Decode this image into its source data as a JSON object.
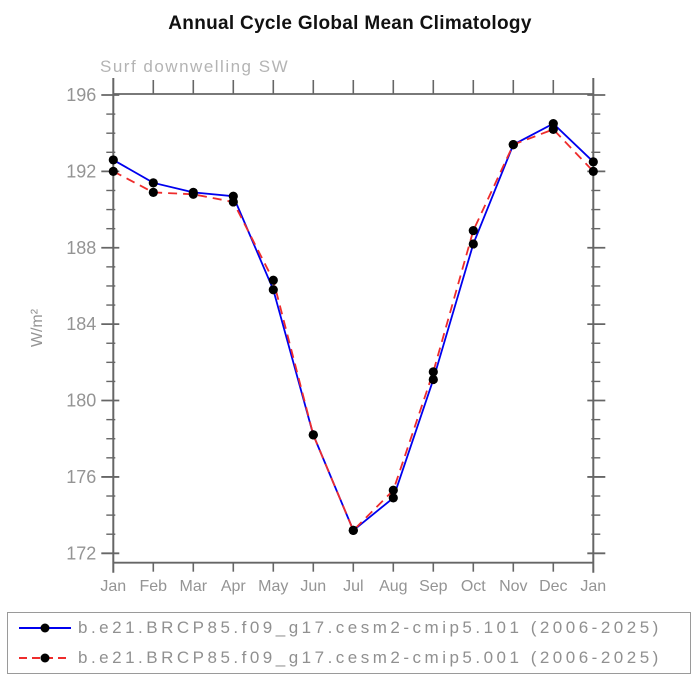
{
  "chart_data": {
    "type": "line",
    "title": "Annual Cycle Global Mean Climatology",
    "subtitle": "Surf downwelling SW",
    "ylabel": "W/m²",
    "xlabel": "",
    "categories": [
      "Jan",
      "Feb",
      "Mar",
      "Apr",
      "May",
      "Jun",
      "Jul",
      "Aug",
      "Sep",
      "Oct",
      "Nov",
      "Dec",
      "Jan"
    ],
    "ylim": [
      171.4,
      196.6
    ],
    "yticks": [
      172,
      176,
      180,
      184,
      188,
      192,
      196
    ],
    "ytick_minor_step": 1,
    "grid": false,
    "legend_position": "bottom-box",
    "marker": "black-dot",
    "series": [
      {
        "name": "b.e21.BRCP85.f09_g17.cesm2-cmip5.101 (2006-2025)",
        "color": "#0000ee",
        "style": "solid",
        "marker": "black-dot",
        "values": [
          192.6,
          191.4,
          190.9,
          190.7,
          185.8,
          178.2,
          173.2,
          174.9,
          181.1,
          188.2,
          193.4,
          194.5,
          192.5
        ]
      },
      {
        "name": "b.e21.BRCP85.f09_g17.cesm2-cmip5.001 (2006-2025)",
        "color": "#ee2c2c",
        "style": "dashed",
        "marker": "black-dot",
        "values": [
          192.0,
          190.9,
          190.8,
          190.4,
          186.3,
          178.2,
          173.2,
          175.3,
          181.5,
          188.9,
          193.4,
          194.2,
          192.0
        ]
      }
    ]
  },
  "colors": {
    "axis": "#666666",
    "tick_label": "#949494",
    "subtitle_text": "#b4b4b4",
    "legend_text": "#909090",
    "legend_border": "#9a9a9a",
    "title_text": "#111111",
    "marker": "#000000"
  }
}
